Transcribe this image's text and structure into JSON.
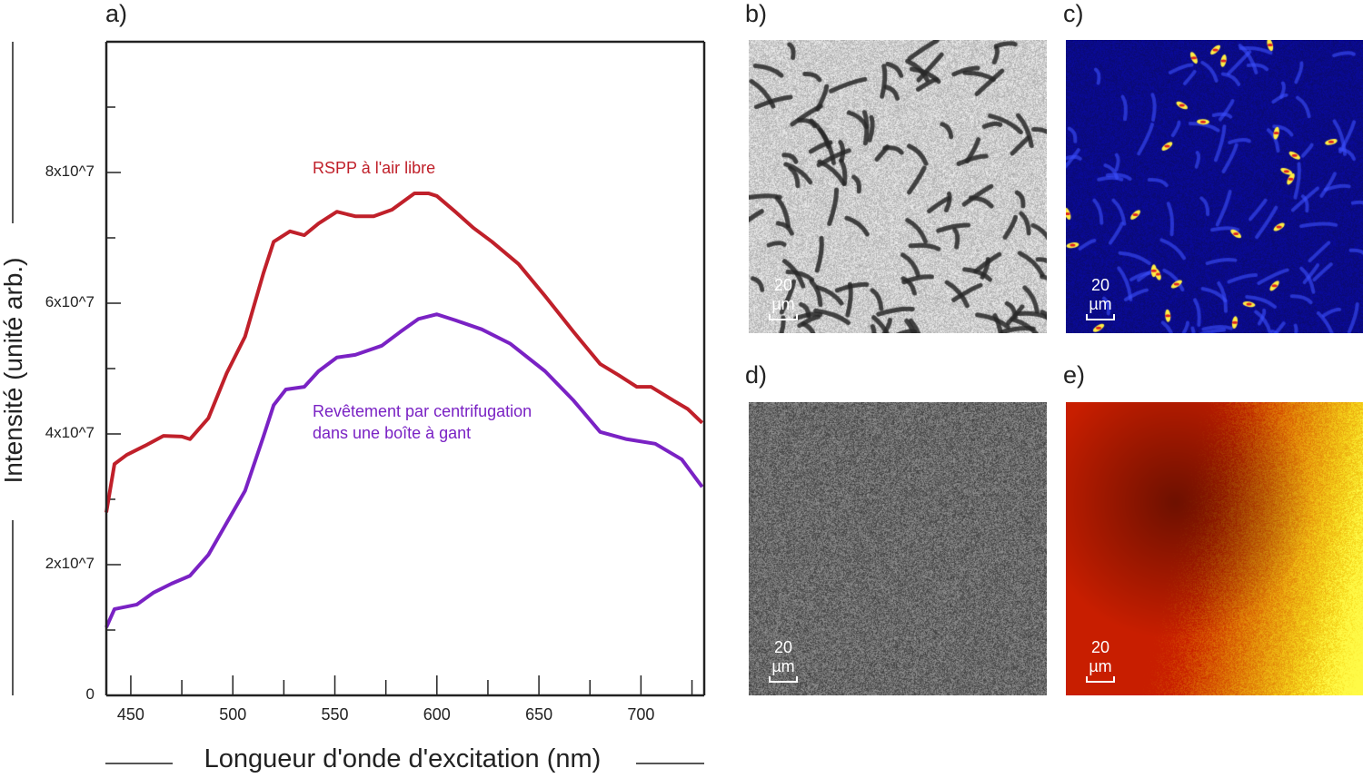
{
  "panels": {
    "a": "a)",
    "b": "b)",
    "c": "c)",
    "d": "d)",
    "e": "e)"
  },
  "scale_bar_label": "20 µm",
  "chart_data": {
    "type": "line",
    "title": "",
    "xlabel": "Longueur d'onde d'excitation (nm)",
    "ylabel": "Intensité (unité arb.)",
    "xlim": [
      438,
      731
    ],
    "ylim": [
      0,
      100000000
    ],
    "xticks": [
      450,
      500,
      550,
      600,
      650,
      700
    ],
    "xtick_labels": [
      "450",
      "500",
      "550",
      "600",
      "650",
      "700"
    ],
    "yticks": [
      0,
      20000000,
      40000000,
      60000000,
      80000000
    ],
    "ytick_labels": [
      "0",
      "2x10^7",
      "4x10^7",
      "6x10^7",
      "8x10^7"
    ],
    "grid": false,
    "series": [
      {
        "name": "RSPP à l'air libre",
        "color": "#c0202a",
        "x": [
          438,
          442,
          448,
          457,
          466,
          475,
          479,
          488,
          497,
          506,
          515,
          520,
          528,
          535,
          542,
          551,
          560,
          569,
          578,
          589,
          596,
          600,
          609,
          618,
          627,
          640,
          653,
          667,
          680,
          689,
          698,
          705,
          716,
          723,
          730
        ],
        "y": [
          2.8,
          3.54,
          3.68,
          3.82,
          3.97,
          3.96,
          3.92,
          4.24,
          4.93,
          5.49,
          6.46,
          6.94,
          7.1,
          7.04,
          7.22,
          7.4,
          7.33,
          7.33,
          7.43,
          7.68,
          7.68,
          7.64,
          7.4,
          7.15,
          6.94,
          6.6,
          6.11,
          5.56,
          5.07,
          4.9,
          4.72,
          4.72,
          4.51,
          4.38,
          4.17
        ],
        "y_unit_multiplier": 10000000
      },
      {
        "name": "Revêtement par centrifugation dans une boîte à gant",
        "label_lines": [
          "Revêtement par centrifugation",
          "dans une boîte à gant"
        ],
        "color": "#7a22c4",
        "x": [
          438,
          442,
          453,
          461,
          470,
          479,
          488,
          497,
          506,
          515,
          520,
          526,
          535,
          542,
          551,
          560,
          573,
          582,
          591,
          600,
          609,
          622,
          636,
          653,
          667,
          680,
          693,
          707,
          720,
          730
        ],
        "y": [
          1.04,
          1.32,
          1.39,
          1.57,
          1.71,
          1.83,
          2.15,
          2.64,
          3.13,
          3.96,
          4.44,
          4.68,
          4.72,
          4.96,
          5.17,
          5.21,
          5.35,
          5.56,
          5.76,
          5.83,
          5.74,
          5.6,
          5.38,
          4.96,
          4.51,
          4.03,
          3.92,
          3.85,
          3.61,
          3.19
        ],
        "y_unit_multiplier": 10000000
      }
    ]
  }
}
